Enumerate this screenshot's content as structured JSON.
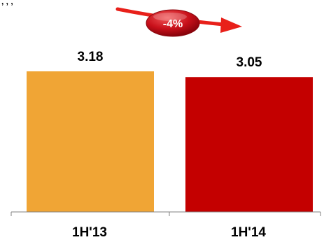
{
  "chart_data": {
    "type": "bar",
    "categories": [
      "1H'13",
      "1H'14"
    ],
    "values": [
      3.18,
      3.05
    ],
    "value_labels": [
      "3.18",
      "3.05"
    ],
    "colors": [
      "#F0A535",
      "#C40000"
    ],
    "ylim": [
      0,
      3.18
    ],
    "grid": false,
    "legend": "none",
    "annotation": {
      "text": "-4%",
      "arrow_color": "#E8201A",
      "badge_color": "#C8101A"
    }
  },
  "top_fragment": {
    "text": ", , ,"
  }
}
